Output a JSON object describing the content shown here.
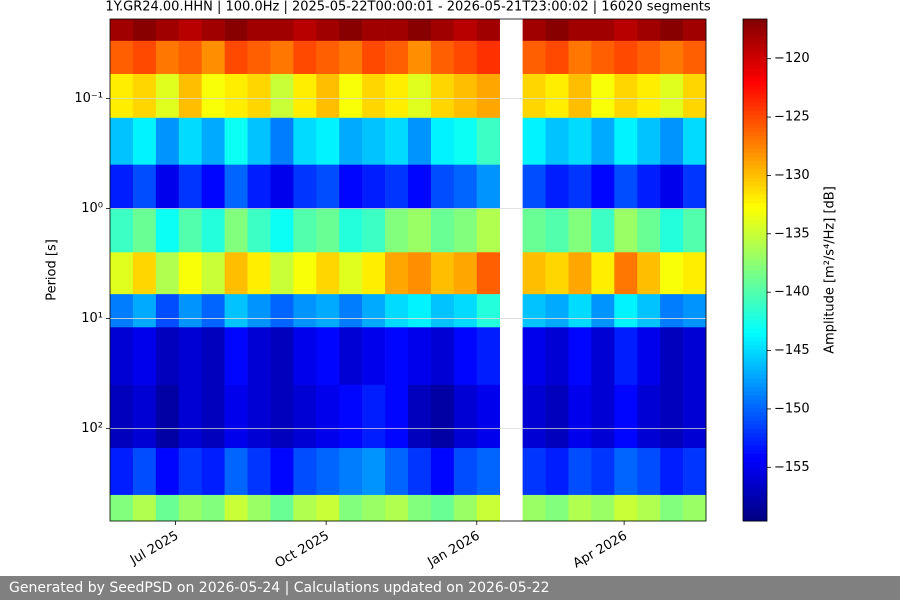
{
  "chart_data": {
    "type": "heatmap",
    "title": "1Y.GR24.00.HHN | 100.0Hz | 2025-05-22T00:00:01 - 2026-05-21T23:00:02 | 16020 segments",
    "ylabel": "Period [s]",
    "colorbar_label": "Amplitude [m²/s⁴/Hz] [dB]",
    "colormap": "jet",
    "yscale": "log",
    "grid": true,
    "xlim": [
      "2025-05-22",
      "2026-05-21"
    ],
    "xticks": [
      {
        "value": "2025-07-01",
        "label": "Jul 2025"
      },
      {
        "value": "2025-10-01",
        "label": "Oct 2025"
      },
      {
        "value": "2026-01-01",
        "label": "Jan 2026"
      },
      {
        "value": "2026-04-01",
        "label": "Apr 2026"
      }
    ],
    "ylim": [
      0.019,
      690
    ],
    "yticks": [
      {
        "value": 0.1,
        "label": "10⁻¹"
      },
      {
        "value": 1,
        "label": "10⁰"
      },
      {
        "value": 10,
        "label": "10¹"
      },
      {
        "value": 100,
        "label": "10²"
      }
    ],
    "clim": [
      -159.6,
      -116.6
    ],
    "cticks": [
      {
        "value": -120,
        "label": "−120"
      },
      {
        "value": -125,
        "label": "−125"
      },
      {
        "value": -130,
        "label": "−130"
      },
      {
        "value": -135,
        "label": "−135"
      },
      {
        "value": -140,
        "label": "−140"
      },
      {
        "value": -145,
        "label": "−145"
      },
      {
        "value": -150,
        "label": "−150"
      },
      {
        "value": -155,
        "label": "−155"
      }
    ],
    "x": [
      "2025-05-22",
      "2025-06-05",
      "2025-06-19",
      "2025-07-03",
      "2025-07-17",
      "2025-07-31",
      "2025-08-14",
      "2025-08-28",
      "2025-09-11",
      "2025-09-25",
      "2025-10-09",
      "2025-10-23",
      "2025-11-06",
      "2025-11-20",
      "2025-12-04",
      "2025-12-18",
      "2026-01-01",
      "2026-01-15",
      "2026-01-29",
      "2026-02-12",
      "2026-02-26",
      "2026-03-12",
      "2026-03-26",
      "2026-04-09",
      "2026-04-23",
      "2026-05-07"
    ],
    "y_bins": [
      0.019,
      0.03,
      0.06,
      0.15,
      0.4,
      1,
      2.5,
      6,
      12,
      40,
      150,
      400,
      690
    ],
    "z": [
      [
        -118,
        -117,
        -118,
        -119,
        -118,
        -117,
        -118,
        -118,
        -119,
        -118,
        -117,
        -118,
        -118,
        -117,
        -118,
        -119,
        -118,
        null,
        -118,
        -117,
        -118,
        -118,
        -119,
        -118,
        -117,
        -118
      ],
      [
        -126,
        -125,
        -127,
        -126,
        -128,
        -125,
        -126,
        -127,
        -125,
        -126,
        -127,
        -125,
        -126,
        -128,
        -126,
        -125,
        -124,
        null,
        -126,
        -125,
        -127,
        -126,
        -125,
        -126,
        -127,
        -126
      ],
      [
        -132,
        -131,
        -134,
        -130,
        -133,
        -132,
        -131,
        -135,
        -132,
        -130,
        -133,
        -131,
        -132,
        -134,
        -131,
        -130,
        -129,
        null,
        -131,
        -132,
        -130,
        -133,
        -131,
        -132,
        -134,
        -131
      ],
      [
        -146,
        -144,
        -148,
        -145,
        -147,
        -143,
        -146,
        -149,
        -145,
        -144,
        -147,
        -146,
        -145,
        -148,
        -144,
        -143,
        -141,
        null,
        -144,
        -146,
        -145,
        -147,
        -144,
        -146,
        -148,
        -145
      ],
      [
        -153,
        -151,
        -155,
        -152,
        -154,
        -150,
        -153,
        -155,
        -152,
        -151,
        -154,
        -153,
        -152,
        -154,
        -151,
        -150,
        -148,
        null,
        -151,
        -153,
        -152,
        -154,
        -151,
        -153,
        -155,
        -152
      ],
      [
        -141,
        -139,
        -143,
        -140,
        -142,
        -138,
        -141,
        -143,
        -140,
        -139,
        -142,
        -141,
        -138,
        -137,
        -139,
        -138,
        -136,
        null,
        -139,
        -140,
        -138,
        -141,
        -137,
        -139,
        -142,
        -140
      ],
      [
        -134,
        -131,
        -136,
        -133,
        -135,
        -130,
        -132,
        -135,
        -133,
        -131,
        -134,
        -132,
        -129,
        -128,
        -130,
        -129,
        -126,
        null,
        -130,
        -131,
        -129,
        -132,
        -127,
        -130,
        -133,
        -132
      ],
      [
        -149,
        -147,
        -151,
        -148,
        -150,
        -146,
        -148,
        -150,
        -148,
        -147,
        -149,
        -147,
        -145,
        -144,
        -146,
        -145,
        -142,
        null,
        -146,
        -147,
        -145,
        -148,
        -144,
        -146,
        -149,
        -148
      ],
      [
        -156,
        -155,
        -157,
        -156,
        -157,
        -154,
        -156,
        -157,
        -155,
        -154,
        -156,
        -155,
        -154,
        -155,
        -156,
        -154,
        -153,
        null,
        -155,
        -156,
        -154,
        -156,
        -153,
        -155,
        -157,
        -156
      ],
      [
        -157,
        -156,
        -158,
        -156,
        -157,
        -155,
        -156,
        -157,
        -156,
        -155,
        -154,
        -153,
        -154,
        -157,
        -158,
        -156,
        -155,
        null,
        -156,
        -157,
        -155,
        -156,
        -154,
        -156,
        -157,
        -156
      ],
      [
        -153,
        -151,
        -154,
        -152,
        -153,
        -150,
        -152,
        -154,
        -151,
        -150,
        -149,
        -148,
        -150,
        -152,
        -154,
        -151,
        -150,
        null,
        -152,
        -153,
        -151,
        -152,
        -150,
        -151,
        -153,
        -152
      ],
      [
        -138,
        -136,
        -139,
        -137,
        -138,
        -135,
        -137,
        -139,
        -136,
        -135,
        -138,
        -137,
        -136,
        -138,
        -139,
        -137,
        -135,
        null,
        -137,
        -138,
        -136,
        -137,
        -135,
        -136,
        -138,
        -137
      ]
    ]
  },
  "footer": "Generated by SeedPSD on 2026-05-24 | Calculations updated on 2026-05-22"
}
